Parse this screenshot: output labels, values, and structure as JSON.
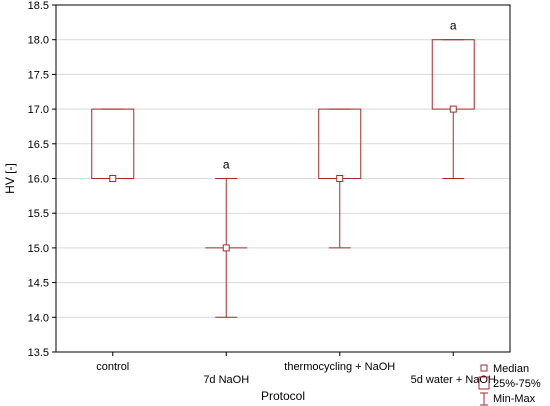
{
  "chart_data": {
    "type": "boxplot",
    "xlabel": "Protocol",
    "ylabel": "HV [-]",
    "ylim": [
      13.5,
      18.5
    ],
    "yticks": [
      "13.5",
      "14.0",
      "14.5",
      "15.0",
      "15.5",
      "16.0",
      "16.5",
      "17.0",
      "17.5",
      "18.0",
      "18.5"
    ],
    "grid": "horizontal",
    "color": "#a52a2a",
    "categories": [
      "control",
      "7d NaOH",
      "thermocycling + NaOH",
      "5d water + NaOH"
    ],
    "boxes": [
      {
        "median": 16.0,
        "q1": 16.0,
        "q3": 17.0,
        "min": 16.0,
        "max": 17.0,
        "annotation": ""
      },
      {
        "median": 15.0,
        "q1": 15.0,
        "q3": 15.0,
        "min": 14.0,
        "max": 16.0,
        "annotation": "a"
      },
      {
        "median": 16.0,
        "q1": 16.0,
        "q3": 17.0,
        "min": 15.0,
        "max": 17.0,
        "annotation": ""
      },
      {
        "median": 17.0,
        "q1": 17.0,
        "q3": 18.0,
        "min": 16.0,
        "max": 18.0,
        "annotation": "a"
      }
    ],
    "legend": {
      "position": "bottom-right",
      "entries": [
        "Median",
        "25%-75%",
        "Min-Max"
      ]
    }
  }
}
